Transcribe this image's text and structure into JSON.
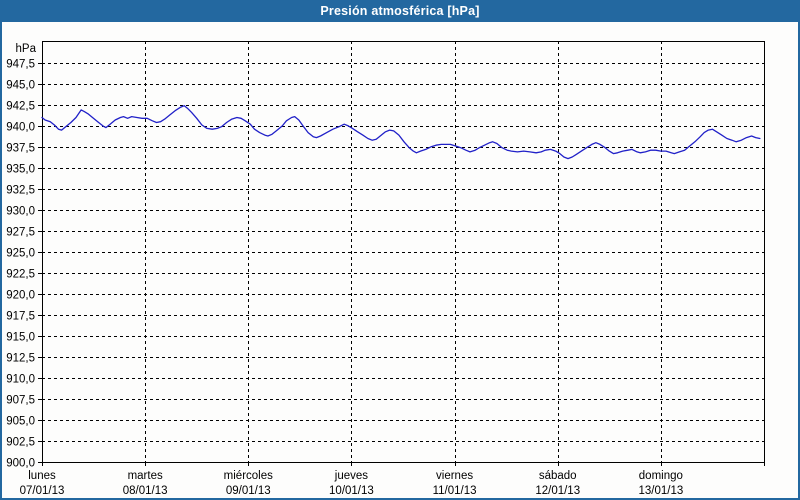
{
  "window": {
    "title_bar": {
      "text": "Presión atmosférica [hPa]"
    }
  },
  "colors": {
    "titlebar_bg": "#2368a0",
    "titlebar_text": "#ffffff",
    "outer_border": "#2368a0",
    "plot_bg": "#fdfdfc",
    "grid": "#000000",
    "axis": "#000000",
    "line": "#2121c8",
    "label_text": "#000000"
  },
  "chart_data": {
    "type": "line",
    "title": "Presión atmosférica [hPa]",
    "unit_label": "hPa",
    "grid": {
      "style": "dashed",
      "horizontal": true,
      "vertical": true
    },
    "legend": "none",
    "y_axis": {
      "min": 900.0,
      "axis_top": 950.1,
      "tick_step": 2.5,
      "tick_values": [
        947.5,
        945.0,
        942.5,
        940.0,
        937.5,
        935.0,
        932.5,
        930.0,
        927.5,
        925.0,
        922.5,
        920.0,
        917.5,
        915.0,
        912.5,
        910.0,
        907.5,
        905.0,
        902.5,
        900.0
      ],
      "tick_labels": [
        "947,5",
        "945,0",
        "942,5",
        "940,0",
        "937,5",
        "935,0",
        "932,5",
        "930,0",
        "927,5",
        "925,0",
        "922,5",
        "920,0",
        "917,5",
        "915,0",
        "912,5",
        "910,0",
        "907,5",
        "905,0",
        "902,5",
        "900,0"
      ]
    },
    "x_axis": {
      "span_days": 7,
      "days": [
        {
          "weekday": "lunes",
          "date": "07/01/13"
        },
        {
          "weekday": "martes",
          "date": "08/01/13"
        },
        {
          "weekday": "miércoles",
          "date": "09/01/13"
        },
        {
          "weekday": "jueves",
          "date": "10/01/13"
        },
        {
          "weekday": "viernes",
          "date": "11/01/13"
        },
        {
          "weekday": "sábado",
          "date": "12/01/13"
        },
        {
          "weekday": "domingo",
          "date": "13/01/13"
        }
      ]
    },
    "series": [
      {
        "name": "Presión atmosférica",
        "color": "#2121c8",
        "points": [
          [
            0.0,
            941.0
          ],
          [
            0.03,
            940.7
          ],
          [
            0.08,
            940.5
          ],
          [
            0.12,
            940.1
          ],
          [
            0.16,
            939.6
          ],
          [
            0.19,
            939.5
          ],
          [
            0.23,
            939.9
          ],
          [
            0.28,
            940.4
          ],
          [
            0.33,
            941.0
          ],
          [
            0.38,
            941.9
          ],
          [
            0.41,
            941.7
          ],
          [
            0.45,
            941.4
          ],
          [
            0.49,
            941.0
          ],
          [
            0.54,
            940.5
          ],
          [
            0.59,
            940.0
          ],
          [
            0.62,
            939.8
          ],
          [
            0.66,
            940.2
          ],
          [
            0.71,
            940.7
          ],
          [
            0.76,
            941.0
          ],
          [
            0.79,
            941.1
          ],
          [
            0.83,
            940.9
          ],
          [
            0.87,
            941.1
          ],
          [
            0.92,
            941.0
          ],
          [
            0.97,
            940.9
          ],
          [
            1.02,
            940.9
          ],
          [
            1.07,
            940.6
          ],
          [
            1.11,
            940.4
          ],
          [
            1.15,
            940.5
          ],
          [
            1.19,
            940.8
          ],
          [
            1.24,
            941.3
          ],
          [
            1.29,
            941.8
          ],
          [
            1.34,
            942.2
          ],
          [
            1.38,
            942.4
          ],
          [
            1.41,
            942.1
          ],
          [
            1.45,
            941.6
          ],
          [
            1.5,
            940.9
          ],
          [
            1.55,
            940.1
          ],
          [
            1.6,
            939.7
          ],
          [
            1.65,
            939.6
          ],
          [
            1.7,
            939.7
          ],
          [
            1.74,
            939.9
          ],
          [
            1.79,
            940.4
          ],
          [
            1.84,
            940.8
          ],
          [
            1.89,
            941.0
          ],
          [
            1.93,
            940.9
          ],
          [
            1.97,
            940.6
          ],
          [
            2.02,
            940.2
          ],
          [
            2.06,
            939.6
          ],
          [
            2.11,
            939.2
          ],
          [
            2.16,
            938.9
          ],
          [
            2.19,
            938.8
          ],
          [
            2.23,
            939.0
          ],
          [
            2.28,
            939.5
          ],
          [
            2.33,
            940.0
          ],
          [
            2.37,
            940.6
          ],
          [
            2.42,
            941.0
          ],
          [
            2.45,
            941.1
          ],
          [
            2.49,
            940.7
          ],
          [
            2.53,
            940.0
          ],
          [
            2.58,
            939.2
          ],
          [
            2.63,
            938.7
          ],
          [
            2.66,
            938.6
          ],
          [
            2.7,
            938.8
          ],
          [
            2.76,
            939.2
          ],
          [
            2.82,
            939.6
          ],
          [
            2.88,
            939.9
          ],
          [
            2.93,
            940.2
          ],
          [
            2.97,
            940.0
          ],
          [
            3.01,
            939.7
          ],
          [
            3.06,
            939.3
          ],
          [
            3.11,
            938.9
          ],
          [
            3.16,
            938.5
          ],
          [
            3.2,
            938.3
          ],
          [
            3.24,
            938.4
          ],
          [
            3.29,
            938.9
          ],
          [
            3.33,
            939.3
          ],
          [
            3.37,
            939.5
          ],
          [
            3.41,
            939.4
          ],
          [
            3.46,
            938.9
          ],
          [
            3.51,
            938.1
          ],
          [
            3.56,
            937.4
          ],
          [
            3.6,
            937.0
          ],
          [
            3.63,
            936.8
          ],
          [
            3.67,
            937.0
          ],
          [
            3.72,
            937.2
          ],
          [
            3.77,
            937.5
          ],
          [
            3.82,
            937.7
          ],
          [
            3.87,
            937.8
          ],
          [
            3.91,
            937.8
          ],
          [
            3.96,
            937.8
          ],
          [
            4.01,
            937.6
          ],
          [
            4.06,
            937.4
          ],
          [
            4.11,
            937.1
          ],
          [
            4.15,
            936.9
          ],
          [
            4.2,
            937.1
          ],
          [
            4.24,
            937.4
          ],
          [
            4.29,
            937.7
          ],
          [
            4.34,
            938.0
          ],
          [
            4.37,
            938.1
          ],
          [
            4.41,
            937.9
          ],
          [
            4.46,
            937.4
          ],
          [
            4.51,
            937.1
          ],
          [
            4.55,
            937.0
          ],
          [
            4.61,
            936.9
          ],
          [
            4.67,
            937.0
          ],
          [
            4.73,
            936.9
          ],
          [
            4.79,
            936.8
          ],
          [
            4.84,
            936.9
          ],
          [
            4.88,
            937.1
          ],
          [
            4.93,
            937.2
          ],
          [
            4.98,
            937.0
          ],
          [
            5.02,
            936.7
          ],
          [
            5.06,
            936.3
          ],
          [
            5.1,
            936.1
          ],
          [
            5.14,
            936.3
          ],
          [
            5.18,
            936.6
          ],
          [
            5.23,
            937.0
          ],
          [
            5.28,
            937.4
          ],
          [
            5.33,
            937.8
          ],
          [
            5.37,
            938.0
          ],
          [
            5.41,
            937.8
          ],
          [
            5.46,
            937.4
          ],
          [
            5.5,
            937.0
          ],
          [
            5.54,
            936.7
          ],
          [
            5.58,
            936.8
          ],
          [
            5.63,
            937.0
          ],
          [
            5.68,
            937.1
          ],
          [
            5.72,
            937.2
          ],
          [
            5.77,
            936.9
          ],
          [
            5.8,
            936.8
          ],
          [
            5.85,
            936.9
          ],
          [
            5.9,
            937.1
          ],
          [
            5.95,
            937.1
          ],
          [
            6.0,
            937.0
          ],
          [
            6.05,
            937.0
          ],
          [
            6.1,
            936.8
          ],
          [
            6.13,
            936.7
          ],
          [
            6.18,
            936.9
          ],
          [
            6.23,
            937.1
          ],
          [
            6.28,
            937.6
          ],
          [
            6.33,
            938.1
          ],
          [
            6.38,
            938.7
          ],
          [
            6.42,
            939.2
          ],
          [
            6.46,
            939.5
          ],
          [
            6.5,
            939.6
          ],
          [
            6.54,
            939.3
          ],
          [
            6.59,
            938.9
          ],
          [
            6.64,
            938.5
          ],
          [
            6.69,
            938.3
          ],
          [
            6.73,
            938.1
          ],
          [
            6.78,
            938.3
          ],
          [
            6.83,
            938.6
          ],
          [
            6.88,
            938.8
          ],
          [
            6.92,
            938.6
          ],
          [
            6.96,
            938.5
          ]
        ]
      }
    ]
  }
}
